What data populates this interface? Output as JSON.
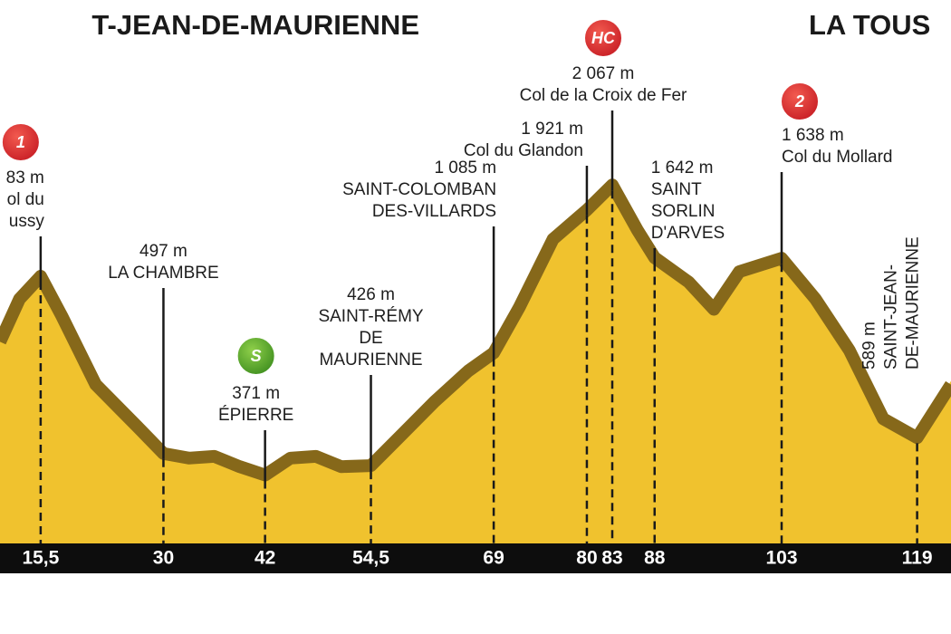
{
  "chart_data": {
    "type": "area",
    "title_left": "T-JEAN-DE-MAURIENNE",
    "title_right": "LA TOUS",
    "color": "#f0c22e",
    "edge_color": "#86681a",
    "x": [
      10.7,
      13,
      15.5,
      18,
      22,
      27,
      30,
      33,
      36,
      39,
      42,
      45,
      48,
      51,
      54.5,
      58,
      62,
      66,
      69,
      72,
      76,
      80,
      83,
      86,
      88,
      92,
      95,
      98,
      103,
      107,
      111,
      115,
      119,
      123
    ],
    "values": [
      1150,
      1400,
      1533,
      1300,
      900,
      650,
      497,
      470,
      480,
      420,
      371,
      470,
      480,
      420,
      426,
      600,
      800,
      980,
      1085,
      1350,
      1750,
      1921,
      2067,
      1800,
      1642,
      1500,
      1340,
      1560,
      1638,
      1400,
      1100,
      700,
      589,
      900
    ],
    "xlim": [
      10.7,
      123
    ],
    "ylim": [
      -50,
      3127
    ],
    "xticks": [
      {
        "value": 15.5,
        "label": "15,5"
      },
      30,
      42,
      {
        "value": 54.5,
        "label": "54,5"
      },
      69,
      80,
      83,
      88,
      103,
      119
    ],
    "annotations": [
      {
        "x": 15.5,
        "badge": "1",
        "lines": [
          "83 m",
          "ol du",
          "ussy"
        ]
      },
      {
        "x": 30,
        "value": 497,
        "value_label": "497 m",
        "lines": [
          "LA CHAMBRE"
        ]
      },
      {
        "x": 42,
        "value": 371,
        "value_label": "371 m",
        "badge": "S",
        "lines": [
          "ÉPIERRE"
        ]
      },
      {
        "x": 54.5,
        "value": 426,
        "value_label": "426 m",
        "lines": [
          "SAINT-RÉMY",
          "DE",
          "MAURIENNE"
        ]
      },
      {
        "x": 69,
        "value": 1085,
        "value_label": "1 085 m",
        "lines": [
          "SAINT-COLOMBAN",
          "DES-VILLARDS"
        ]
      },
      {
        "x": 80,
        "value": 1921,
        "value_label": "1 921 m",
        "lines": [
          "Col du Glandon"
        ]
      },
      {
        "x": 83,
        "value": 2067,
        "value_label": "2 067 m",
        "badge": "HC",
        "lines": [
          "Col de la Croix de Fer"
        ]
      },
      {
        "x": 88,
        "value": 1642,
        "value_label": "1 642 m",
        "lines": [
          "SAINT",
          "SORLIN",
          "D'ARVES"
        ]
      },
      {
        "x": 103,
        "value": 1638,
        "value_label": "1 638 m",
        "badge": "2",
        "lines": [
          "Col du Mollard"
        ]
      },
      {
        "x": 119,
        "value": 589,
        "value_label": "589 m",
        "lines": [
          "SAINT-JEAN-",
          "DE-MAURIENNE"
        ]
      }
    ]
  }
}
